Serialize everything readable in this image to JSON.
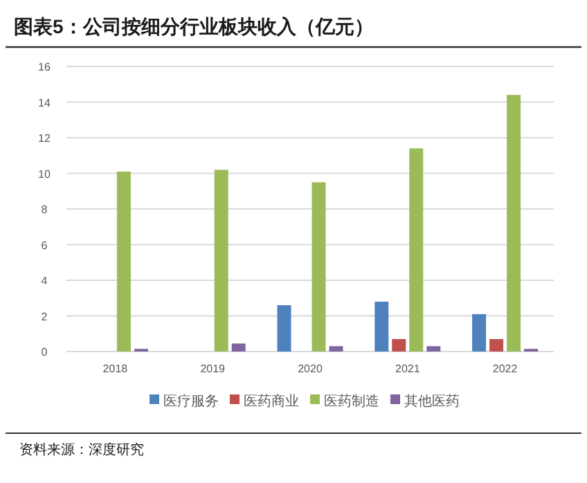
{
  "chart_data": {
    "type": "bar",
    "title": "图表5：公司按细分行业板块收入（亿元）",
    "categories": [
      "2018",
      "2019",
      "2020",
      "2021",
      "2022"
    ],
    "series": [
      {
        "name": "医疗服务",
        "color": "#4f81bd",
        "values": [
          0,
          0,
          2.6,
          2.8,
          2.1
        ]
      },
      {
        "name": "医药商业",
        "color": "#c0504d",
        "values": [
          0,
          0,
          0,
          0.7,
          0.7
        ]
      },
      {
        "name": "医药制造",
        "color": "#9bbb59",
        "values": [
          10.1,
          10.2,
          9.5,
          11.4,
          14.4
        ]
      },
      {
        "name": "其他医药",
        "color": "#8064a2",
        "values": [
          0.15,
          0.45,
          0.3,
          0.3,
          0.15
        ]
      }
    ],
    "ylim": [
      0,
      16
    ],
    "yticks": [
      0,
      2,
      4,
      6,
      8,
      10,
      12,
      14,
      16
    ],
    "grid": "y",
    "legend": "bottom",
    "annotations": [
      "资料来源：深度研究"
    ]
  }
}
